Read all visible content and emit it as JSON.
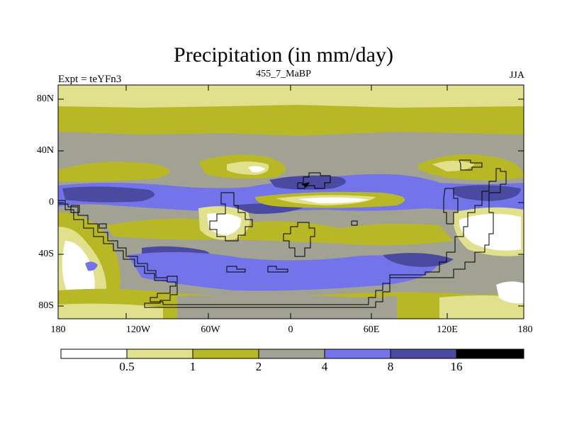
{
  "title": "Precipitation (in mm/day)",
  "experiment_label": "Expt = teYFn3",
  "period_label": "455_7_MaBP",
  "season_label": "JJA",
  "y_axis_labels": [
    "80N",
    "40N",
    "0",
    "40S",
    "80S"
  ],
  "x_axis_labels": [
    "180",
    "120W",
    "60W",
    "0",
    "60E",
    "120E",
    "180"
  ],
  "colorbar": {
    "levels": [
      "0.5",
      "1",
      "2",
      "4",
      "8",
      "16"
    ],
    "colors": [
      "#ffffff",
      "#e1e08c",
      "#b8b827",
      "#a1a194",
      "#7474ea",
      "#4a4aa0",
      "#000000"
    ]
  },
  "chart_data": {
    "type": "heatmap",
    "variable": "Precipitation",
    "units": "mm/day",
    "projection": "cylindrical equidistant",
    "lon_range": [
      -180,
      180
    ],
    "lat_range": [
      -90,
      90
    ],
    "contour_levels": [
      0.5,
      1,
      2,
      4,
      8,
      16
    ]
  }
}
